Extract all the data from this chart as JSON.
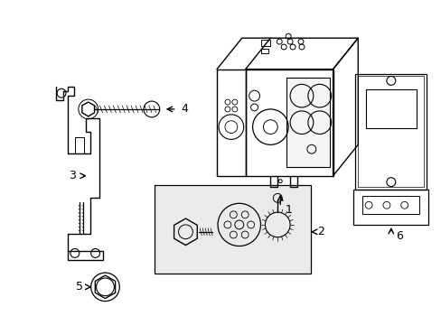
{
  "background_color": "#ffffff",
  "line_color": "#000000",
  "line_width": 1.0,
  "fig_width": 4.89,
  "fig_height": 3.6,
  "dpi": 100,
  "label_fontsize": 9
}
